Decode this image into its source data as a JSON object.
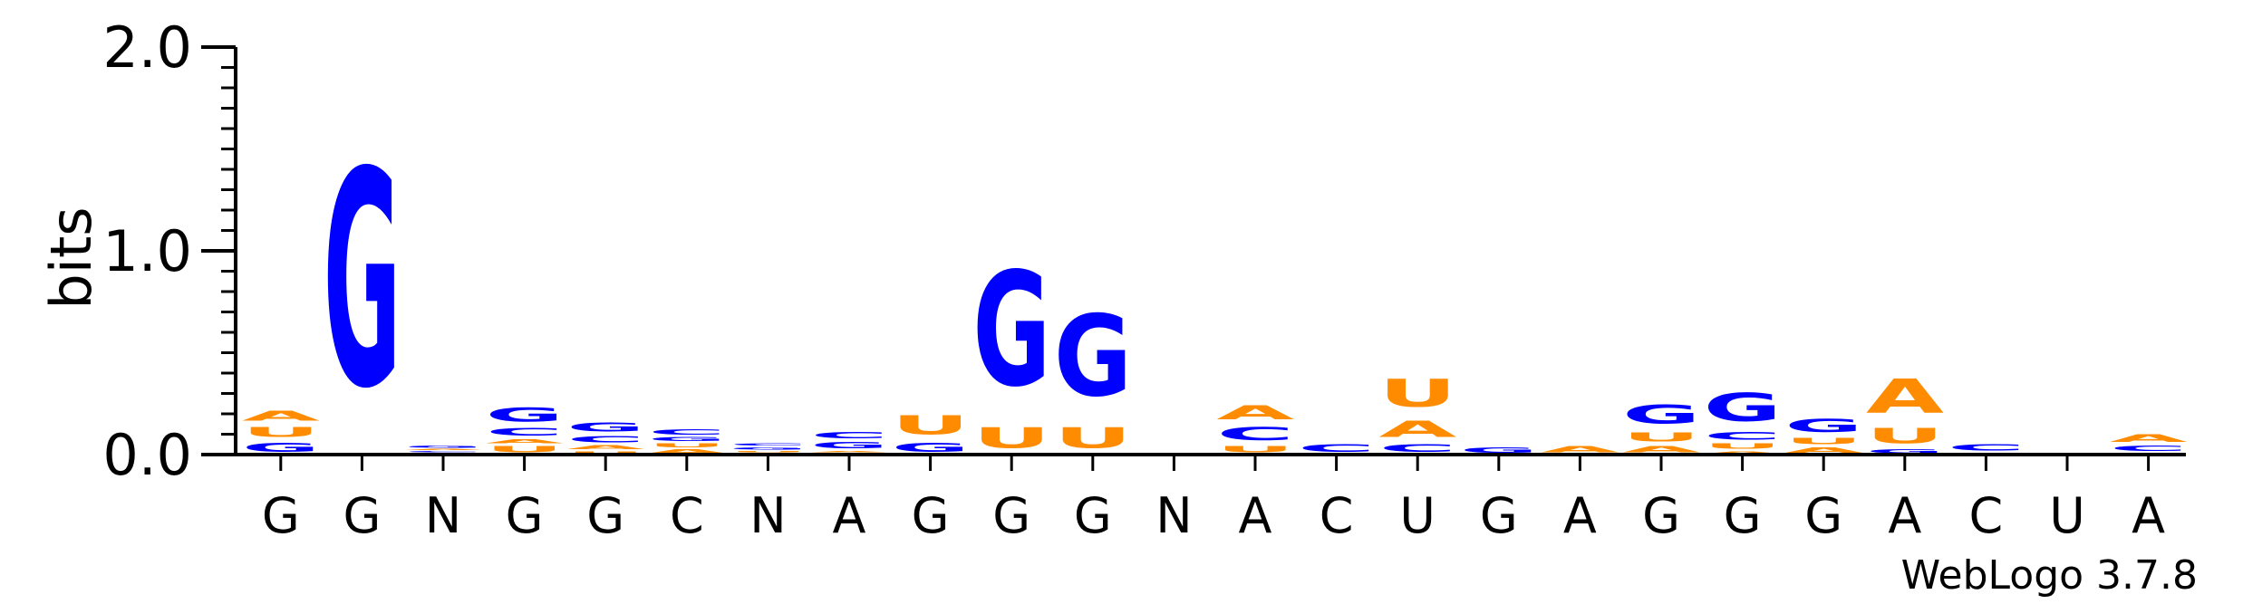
{
  "chart_data": {
    "type": "sequence-logo",
    "ylabel": "bits",
    "ylim": [
      0,
      2.0
    ],
    "yticks": [
      {
        "value": 0.0,
        "label": "0.0"
      },
      {
        "value": 1.0,
        "label": "1.0"
      },
      {
        "value": 2.0,
        "label": "2.0"
      }
    ],
    "colors": {
      "G": "#0000ff",
      "C": "#0000ff",
      "U": "#ff8c00",
      "A": "#ff8c00",
      "N": "#000000"
    },
    "positions": [
      {
        "label": "G",
        "stack": [
          {
            "l": "G",
            "h": 0.07
          },
          {
            "l": "U",
            "h": 0.08
          },
          {
            "l": "A",
            "h": 0.08
          }
        ]
      },
      {
        "label": "G",
        "stack": [
          {
            "l": "G",
            "h": 1.7
          }
        ]
      },
      {
        "label": "N",
        "stack": [
          {
            "l": "U",
            "h": 0.01
          },
          {
            "l": "C",
            "h": 0.01
          },
          {
            "l": "A",
            "h": 0.01
          },
          {
            "l": "G",
            "h": 0.02
          }
        ]
      },
      {
        "label": "G",
        "stack": [
          {
            "l": "U",
            "h": 0.05
          },
          {
            "l": "A",
            "h": 0.03
          },
          {
            "l": "C",
            "h": 0.06
          },
          {
            "l": "G",
            "h": 0.11
          }
        ]
      },
      {
        "label": "G",
        "stack": [
          {
            "l": "U",
            "h": 0.02
          },
          {
            "l": "A",
            "h": 0.03
          },
          {
            "l": "C",
            "h": 0.05
          },
          {
            "l": "G",
            "h": 0.07
          }
        ]
      },
      {
        "label": "C",
        "stack": [
          {
            "l": "A",
            "h": 0.03
          },
          {
            "l": "U",
            "h": 0.03
          },
          {
            "l": "G",
            "h": 0.03
          },
          {
            "l": "C",
            "h": 0.04
          }
        ]
      },
      {
        "label": "N",
        "stack": [
          {
            "l": "A",
            "h": 0.01
          },
          {
            "l": "U",
            "h": 0.01
          },
          {
            "l": "G",
            "h": 0.02
          },
          {
            "l": "C",
            "h": 0.02
          }
        ]
      },
      {
        "label": "A",
        "stack": [
          {
            "l": "U",
            "h": 0.01
          },
          {
            "l": "A",
            "h": 0.01
          },
          {
            "l": "G",
            "h": 0.05
          },
          {
            "l": "C",
            "h": 0.05
          }
        ]
      },
      {
        "label": "G",
        "stack": [
          {
            "l": "G",
            "h": 0.07
          },
          {
            "l": "U",
            "h": 0.15
          }
        ]
      },
      {
        "label": "G",
        "stack": [
          {
            "l": "U",
            "h": 0.16
          },
          {
            "l": "G",
            "h": 0.9
          }
        ]
      },
      {
        "label": "G",
        "stack": [
          {
            "l": "U",
            "h": 0.16
          },
          {
            "l": "G",
            "h": 0.64
          }
        ]
      },
      {
        "label": "N",
        "stack": []
      },
      {
        "label": "A",
        "stack": [
          {
            "l": "U",
            "h": 0.05
          },
          {
            "l": "C",
            "h": 0.1
          },
          {
            "l": "A",
            "h": 0.11
          }
        ]
      },
      {
        "label": "C",
        "stack": [
          {
            "l": "C",
            "h": 0.06
          }
        ]
      },
      {
        "label": "U",
        "stack": [
          {
            "l": "C",
            "h": 0.06
          },
          {
            "l": "A",
            "h": 0.13
          },
          {
            "l": "U",
            "h": 0.22
          }
        ]
      },
      {
        "label": "G",
        "stack": [
          {
            "l": "G",
            "h": 0.04
          }
        ]
      },
      {
        "label": "A",
        "stack": [
          {
            "l": "A",
            "h": 0.05
          }
        ]
      },
      {
        "label": "G",
        "stack": [
          {
            "l": "A",
            "h": 0.05
          },
          {
            "l": "U",
            "h": 0.07
          },
          {
            "l": "G",
            "h": 0.15
          }
        ]
      },
      {
        "label": "G",
        "stack": [
          {
            "l": "A",
            "h": 0.02
          },
          {
            "l": "U",
            "h": 0.04
          },
          {
            "l": "C",
            "h": 0.06
          },
          {
            "l": "G",
            "h": 0.22
          }
        ]
      },
      {
        "label": "G",
        "stack": [
          {
            "l": "A",
            "h": 0.04
          },
          {
            "l": "U",
            "h": 0.05
          },
          {
            "l": "G",
            "h": 0.1
          }
        ]
      },
      {
        "label": "A",
        "stack": [
          {
            "l": "G",
            "h": 0.03
          },
          {
            "l": "U",
            "h": 0.12
          },
          {
            "l": "A",
            "h": 0.27
          }
        ]
      },
      {
        "label": "C",
        "stack": [
          {
            "l": "A",
            "h": 0.01
          },
          {
            "l": "C",
            "h": 0.05
          }
        ]
      },
      {
        "label": "U",
        "stack": []
      },
      {
        "label": "A",
        "stack": [
          {
            "l": "U",
            "h": 0.01
          },
          {
            "l": "C",
            "h": 0.04
          },
          {
            "l": "A",
            "h": 0.06
          }
        ]
      }
    ]
  },
  "footer": {
    "credit": "WebLogo 3.7.8"
  }
}
